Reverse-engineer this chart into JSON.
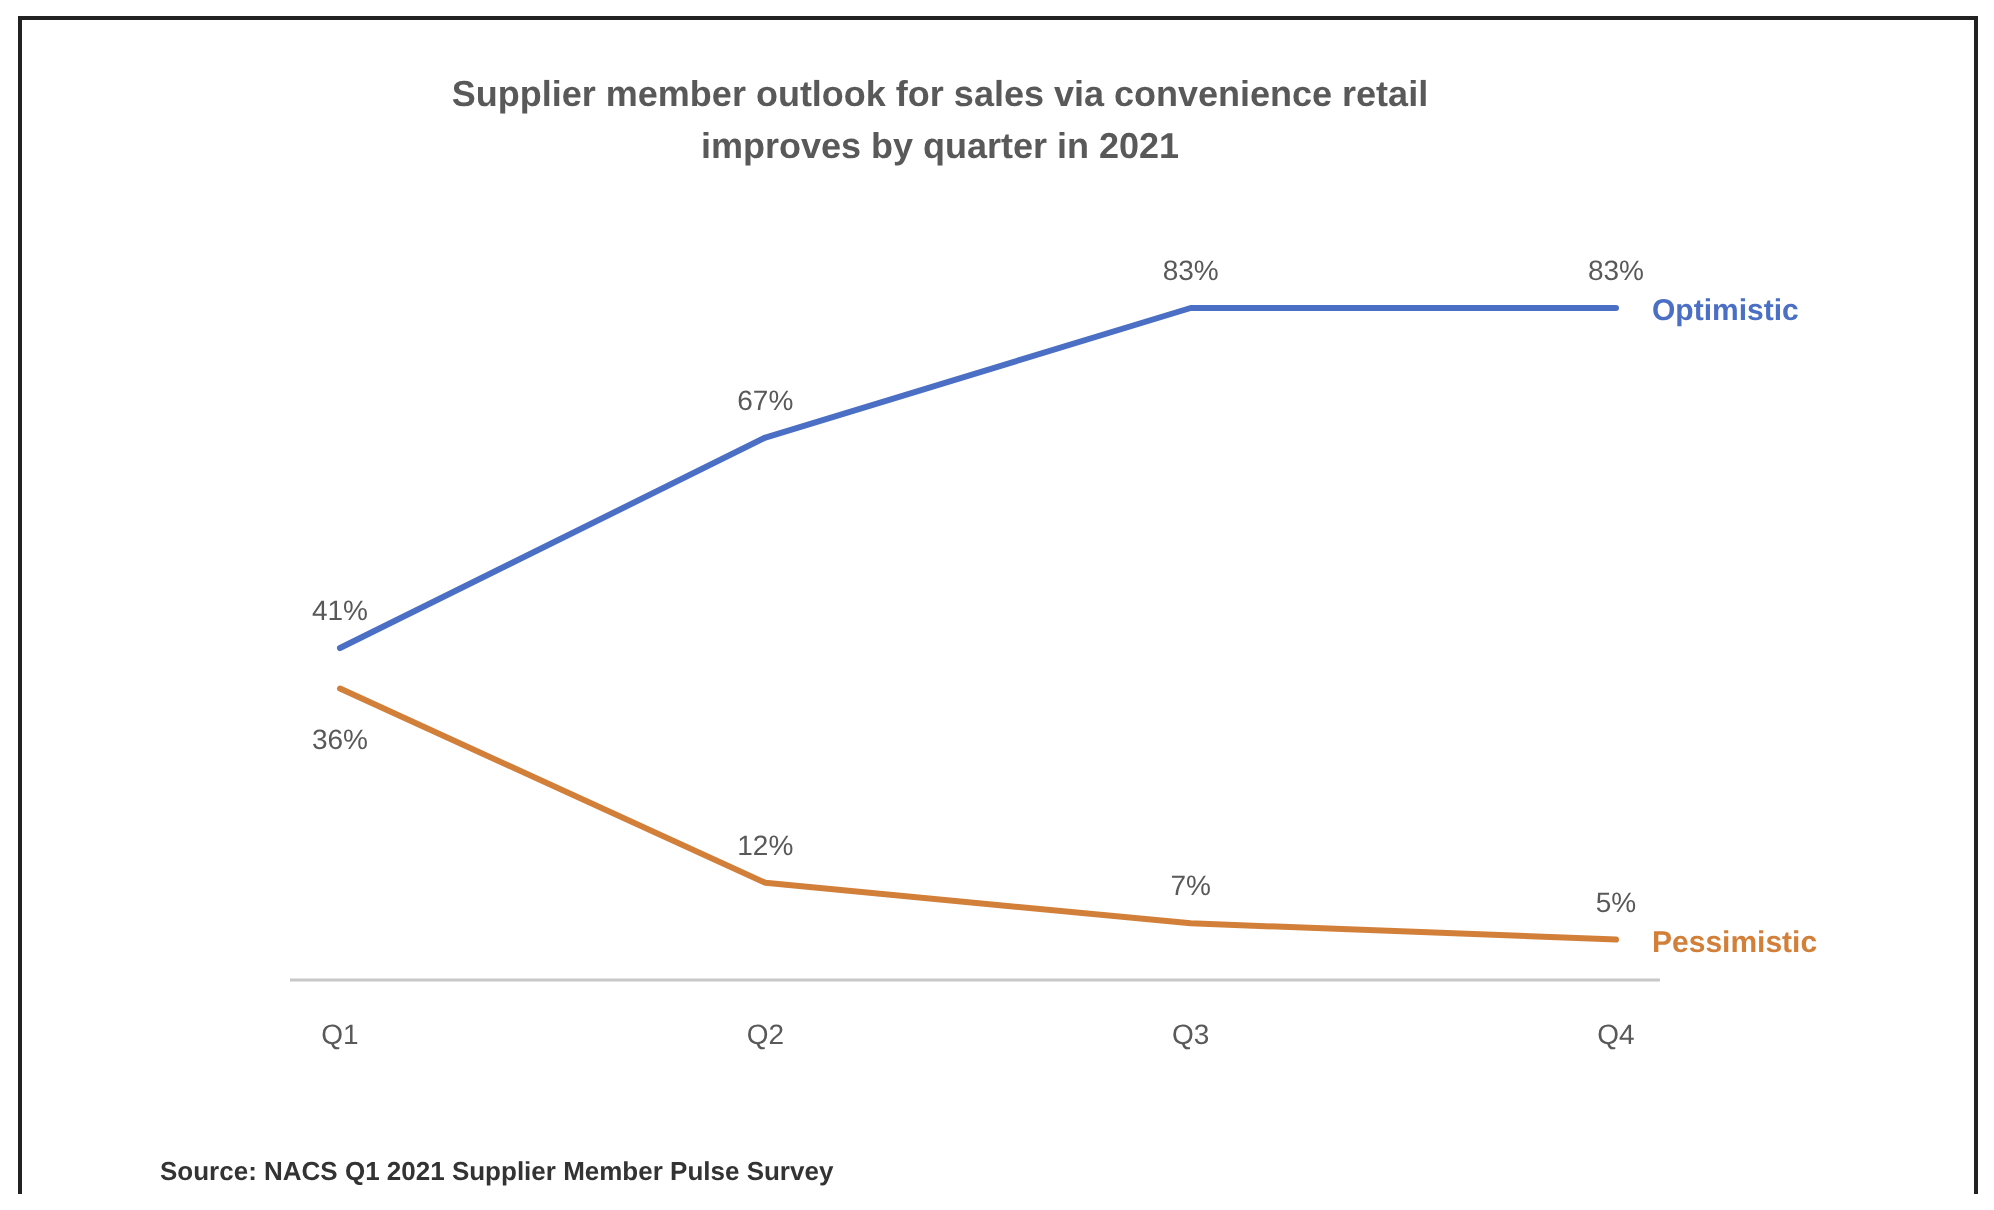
{
  "chart_data": {
    "type": "line",
    "title": "Supplier member outlook for sales via convenience retail improves by quarter in 2021",
    "categories": [
      "Q1",
      "Q2",
      "Q3",
      "Q4"
    ],
    "series": [
      {
        "name": "Optimistic",
        "color": "#4a6fc4",
        "values": [
          41,
          67,
          83,
          83
        ],
        "value_labels": [
          "41%",
          "67%",
          "83%",
          "83%"
        ]
      },
      {
        "name": "Pessimistic",
        "color": "#d27f3a",
        "values": [
          36,
          12,
          7,
          5
        ],
        "value_labels": [
          "36%",
          "12%",
          "7%",
          "5%"
        ]
      }
    ],
    "tick_labels": "x",
    "legend": "right",
    "marker": "none",
    "annotations": [
      "Source: NACS Q1 2021 Supplier Member Pulse Survey"
    ]
  }
}
